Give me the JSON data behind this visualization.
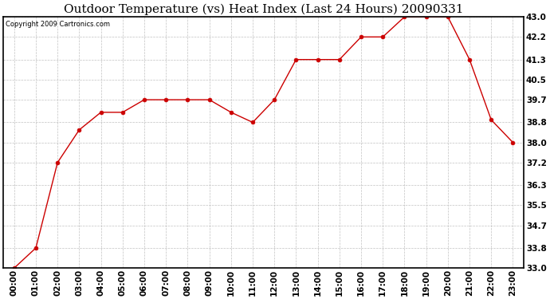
{
  "title": "Outdoor Temperature (vs) Heat Index (Last 24 Hours) 20090331",
  "copyright": "Copyright 2009 Cartronics.com",
  "x_labels": [
    "00:00",
    "01:00",
    "02:00",
    "03:00",
    "04:00",
    "05:00",
    "06:00",
    "07:00",
    "08:00",
    "09:00",
    "10:00",
    "11:00",
    "12:00",
    "13:00",
    "14:00",
    "15:00",
    "16:00",
    "17:00",
    "18:00",
    "19:00",
    "20:00",
    "21:00",
    "22:00",
    "23:00"
  ],
  "y_values": [
    33.0,
    33.8,
    37.2,
    38.5,
    39.2,
    39.2,
    39.7,
    39.7,
    39.7,
    39.7,
    39.2,
    38.8,
    39.7,
    41.3,
    41.3,
    41.3,
    42.2,
    42.2,
    43.0,
    43.0,
    43.0,
    41.3,
    38.9,
    38.0
  ],
  "y_ticks": [
    33.0,
    33.8,
    34.7,
    35.5,
    36.3,
    37.2,
    38.0,
    38.8,
    39.7,
    40.5,
    41.3,
    42.2,
    43.0
  ],
  "y_tick_labels": [
    "33.0",
    "33.8",
    "34.7",
    "35.5",
    "36.3",
    "37.2",
    "38.0",
    "38.8",
    "39.7",
    "40.5",
    "41.3",
    "42.2",
    "43.0"
  ],
  "y_min": 33.0,
  "y_max": 43.0,
  "line_color": "#cc0000",
  "marker_color": "#cc0000",
  "bg_color": "#ffffff",
  "plot_bg_color": "#ffffff",
  "grid_color": "#bbbbbb",
  "title_fontsize": 11,
  "tick_fontsize": 7.5,
  "copyright_fontsize": 6.0
}
